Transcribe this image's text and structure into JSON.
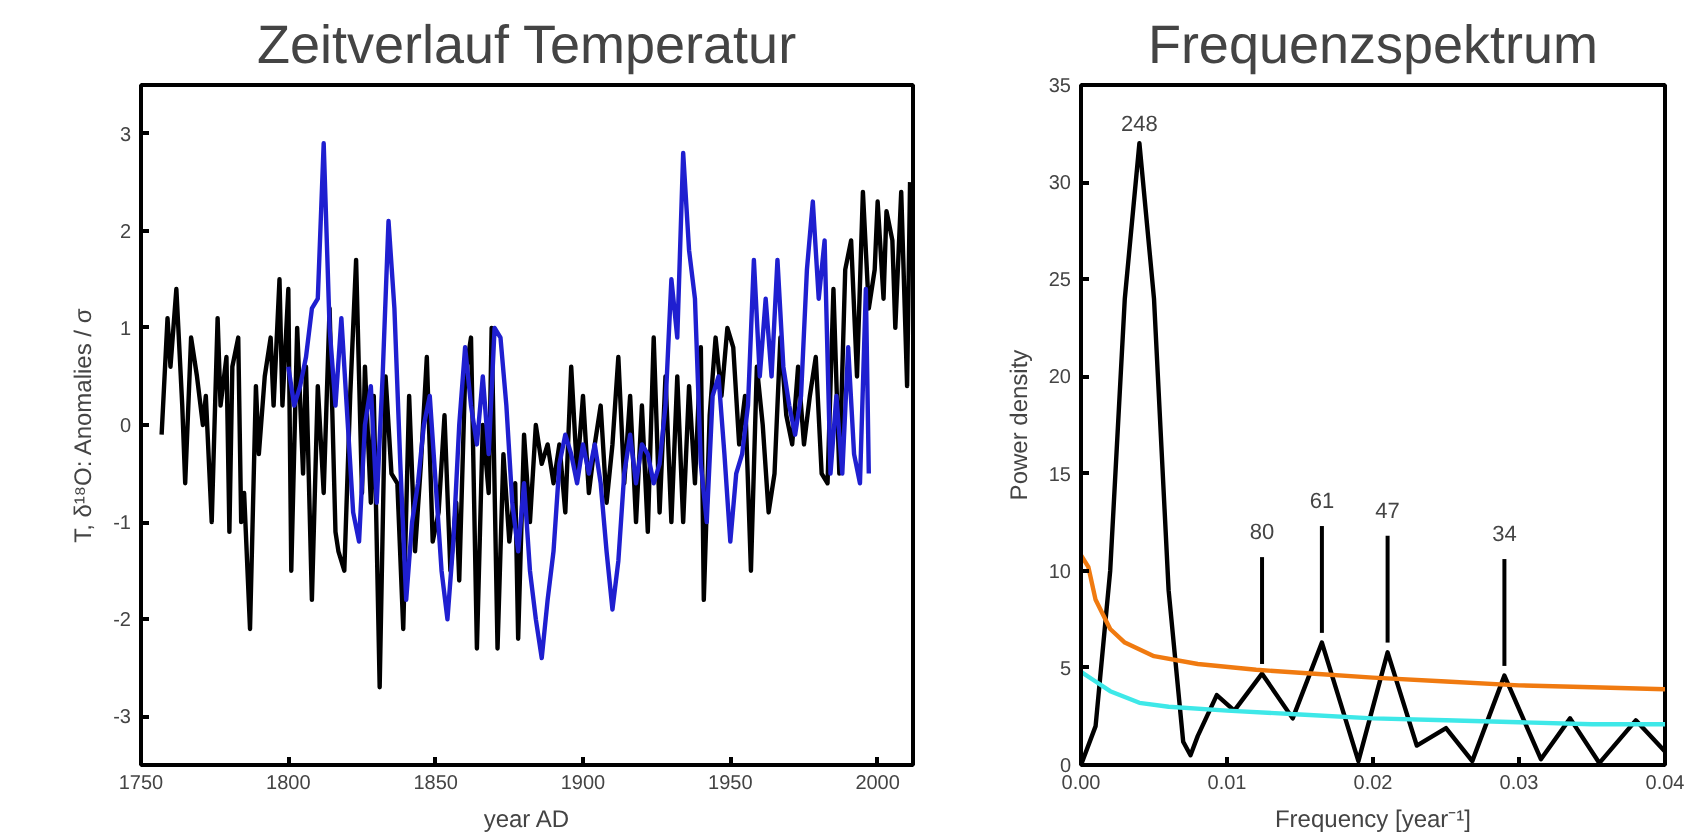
{
  "chart_data": [
    {
      "type": "line",
      "title": "Zeitverlauf Temperatur",
      "xlabel": "year AD",
      "ylabel": "T, δ¹⁸O: Anomalies / σ",
      "xlim": [
        1750,
        2012
      ],
      "ylim": [
        -3.5,
        3.5
      ],
      "xticks": [
        1750,
        1800,
        1850,
        1900,
        1950,
        2000
      ],
      "yticks": [
        -3,
        -2,
        -1,
        0,
        1,
        2,
        3
      ],
      "grid": false,
      "series": [
        {
          "color": "#000000",
          "x": [
            1757,
            1759,
            1760,
            1762,
            1764,
            1765,
            1767,
            1769,
            1771,
            1772,
            1774,
            1776,
            1777,
            1779,
            1780,
            1781,
            1783,
            1784,
            1785,
            1787,
            1789,
            1790,
            1792,
            1794,
            1795,
            1797,
            1798,
            1800,
            1801,
            1803,
            1805,
            1806,
            1808,
            1810,
            1812,
            1814,
            1816,
            1817,
            1819,
            1821,
            1823,
            1825,
            1826,
            1828,
            1829,
            1831,
            1833,
            1835,
            1837,
            1839,
            1841,
            1843,
            1845,
            1847,
            1849,
            1851,
            1853,
            1855,
            1857,
            1858,
            1860,
            1862,
            1864,
            1866,
            1868,
            1869,
            1871,
            1873,
            1875,
            1877,
            1878,
            1880,
            1882,
            1884,
            1886,
            1888,
            1890,
            1892,
            1894,
            1896,
            1898,
            1900,
            1902,
            1904,
            1906,
            1908,
            1910,
            1912,
            1914,
            1916,
            1918,
            1920,
            1922,
            1924,
            1926,
            1928,
            1930,
            1932,
            1934,
            1936,
            1938,
            1940,
            1941,
            1943,
            1945,
            1947,
            1949,
            1951,
            1953,
            1955,
            1957,
            1959,
            1961,
            1963,
            1965,
            1967,
            1969,
            1971,
            1973,
            1975,
            1977,
            1979,
            1981,
            1983,
            1985,
            1987,
            1989,
            1991,
            1993,
            1995,
            1997,
            1999,
            2000,
            2002,
            2003,
            2005,
            2006,
            2008,
            2010,
            2011
          ],
          "values": [
            -0.1,
            1.1,
            0.6,
            1.4,
            0.2,
            -0.6,
            0.9,
            0.5,
            0.0,
            0.3,
            -1.0,
            1.1,
            0.2,
            0.7,
            -1.1,
            0.6,
            0.9,
            -1.0,
            -0.7,
            -2.1,
            0.4,
            -0.3,
            0.5,
            0.9,
            0.2,
            1.5,
            0.2,
            1.4,
            -1.5,
            1.0,
            -0.5,
            0.6,
            -1.8,
            0.4,
            -0.7,
            1.2,
            -1.1,
            -1.3,
            -1.5,
            0.3,
            1.7,
            -0.7,
            0.6,
            -0.8,
            0.3,
            -2.7,
            0.5,
            -0.5,
            -0.6,
            -2.1,
            0.3,
            -1.3,
            -0.4,
            0.7,
            -1.2,
            -0.9,
            0.1,
            -1.5,
            -0.8,
            -1.6,
            0.5,
            0.9,
            -2.3,
            0.0,
            -0.7,
            1.0,
            -2.3,
            -0.3,
            -1.2,
            -0.6,
            -2.2,
            -0.1,
            -1.0,
            0.0,
            -0.4,
            -0.2,
            -0.6,
            -0.2,
            -0.9,
            0.6,
            -0.5,
            0.3,
            -0.7,
            -0.2,
            0.2,
            -0.8,
            -0.2,
            0.7,
            -0.6,
            0.3,
            -1.0,
            0.2,
            -1.1,
            0.9,
            -0.9,
            0.5,
            -1.0,
            0.5,
            -1.0,
            0.4,
            -0.6,
            0.8,
            -1.8,
            0.1,
            0.9,
            0.3,
            1.0,
            0.8,
            -0.2,
            0.3,
            -1.5,
            0.6,
            0.0,
            -0.9,
            -0.5,
            0.9,
            0.1,
            -0.2,
            0.6,
            -0.2,
            0.3,
            0.7,
            -0.5,
            -0.6,
            1.4,
            -0.5,
            1.6,
            1.9,
            0.5,
            2.4,
            1.2,
            1.6,
            2.3,
            1.3,
            2.2,
            1.9,
            1.0,
            2.4,
            0.4,
            2.5
          ]
        },
        {
          "color": "#1f1fd0",
          "x": [
            1800,
            1802,
            1804,
            1806,
            1808,
            1810,
            1812,
            1814,
            1816,
            1818,
            1820,
            1822,
            1824,
            1826,
            1828,
            1830,
            1832,
            1834,
            1836,
            1838,
            1840,
            1842,
            1844,
            1846,
            1848,
            1850,
            1852,
            1854,
            1856,
            1858,
            1860,
            1862,
            1864,
            1866,
            1868,
            1870,
            1872,
            1874,
            1876,
            1878,
            1880,
            1882,
            1884,
            1886,
            1888,
            1890,
            1892,
            1894,
            1896,
            1898,
            1900,
            1902,
            1904,
            1906,
            1908,
            1910,
            1912,
            1914,
            1916,
            1918,
            1920,
            1922,
            1924,
            1926,
            1928,
            1930,
            1932,
            1934,
            1936,
            1938,
            1940,
            1942,
            1944,
            1946,
            1948,
            1950,
            1952,
            1954,
            1956,
            1958,
            1960,
            1962,
            1964,
            1966,
            1968,
            1970,
            1972,
            1974,
            1976,
            1978,
            1980,
            1982,
            1984,
            1986,
            1988,
            1990,
            1992,
            1994,
            1996,
            1997
          ],
          "values": [
            0.6,
            0.2,
            0.4,
            0.7,
            1.2,
            1.3,
            2.9,
            1.0,
            0.2,
            1.1,
            0.1,
            -0.9,
            -1.2,
            0.0,
            0.4,
            -0.8,
            0.5,
            2.1,
            1.2,
            -0.4,
            -1.8,
            -1.0,
            -0.6,
            0.0,
            0.3,
            -0.6,
            -1.5,
            -2.0,
            -1.2,
            0.0,
            0.8,
            0.2,
            -0.2,
            0.5,
            -0.3,
            1.0,
            0.9,
            0.2,
            -0.8,
            -1.3,
            -0.6,
            -1.5,
            -2.0,
            -2.4,
            -1.8,
            -1.3,
            -0.4,
            -0.1,
            -0.3,
            -0.6,
            -0.2,
            -0.5,
            -0.2,
            -0.6,
            -1.3,
            -1.9,
            -1.4,
            -0.5,
            -0.1,
            -0.6,
            -0.2,
            -0.3,
            -0.6,
            -0.4,
            0.2,
            1.5,
            0.9,
            2.8,
            1.8,
            1.3,
            -0.4,
            -1.0,
            0.3,
            0.5,
            -0.3,
            -1.2,
            -0.5,
            -0.3,
            0.2,
            1.7,
            0.5,
            1.3,
            0.5,
            1.7,
            0.6,
            0.2,
            -0.1,
            0.3,
            1.6,
            2.3,
            1.3,
            1.9,
            -0.5,
            0.3,
            -0.5,
            0.8,
            -0.3,
            -0.6,
            1.4,
            -0.5
          ]
        }
      ]
    },
    {
      "type": "line",
      "title": "Frequenzspektrum",
      "xlabel": "Frequency [year⁻¹]",
      "ylabel": "Power density",
      "xlim": [
        0,
        0.04
      ],
      "ylim": [
        0,
        35
      ],
      "xticks": [
        {
          "value": 0,
          "label": "0.00"
        },
        {
          "value": 0.01,
          "label": "0.01"
        },
        {
          "value": 0.02,
          "label": "0.02"
        },
        {
          "value": 0.03,
          "label": "0.03"
        },
        {
          "value": 0.04,
          "label": "0.04"
        }
      ],
      "yticks": [
        0,
        5,
        10,
        15,
        20,
        25,
        30,
        35
      ],
      "grid": false,
      "annotations": [
        {
          "text": "248",
          "x": 0.004,
          "y": 32
        },
        {
          "text": "80",
          "x": 0.0124,
          "y": 4.7
        },
        {
          "text": "61",
          "x": 0.0165,
          "y": 6.3
        },
        {
          "text": "47",
          "x": 0.021,
          "y": 5.8
        },
        {
          "text": "34",
          "x": 0.029,
          "y": 4.6
        }
      ],
      "series": [
        {
          "color": "#000000",
          "x": [
            0,
            0.001,
            0.002,
            0.003,
            0.004,
            0.005,
            0.006,
            0.007,
            0.0075,
            0.008,
            0.0093,
            0.0105,
            0.0124,
            0.0145,
            0.0165,
            0.019,
            0.021,
            0.023,
            0.025,
            0.0268,
            0.029,
            0.0315,
            0.0335,
            0.0355,
            0.038,
            0.04
          ],
          "values": [
            0,
            2,
            10,
            24,
            32,
            24,
            9,
            1.2,
            0.5,
            1.5,
            3.6,
            2.8,
            4.7,
            2.4,
            6.3,
            0.2,
            5.8,
            1.0,
            1.9,
            0.2,
            4.6,
            0.3,
            2.4,
            0.1,
            2.3,
            0.7
          ]
        },
        {
          "color": "#f07a10",
          "x": [
            0,
            0.0005,
            0.001,
            0.002,
            0.003,
            0.005,
            0.008,
            0.012,
            0.016,
            0.02,
            0.025,
            0.03,
            0.035,
            0.04
          ],
          "values": [
            10.8,
            10.2,
            8.5,
            7,
            6.3,
            5.6,
            5.2,
            4.9,
            4.7,
            4.5,
            4.3,
            4.1,
            4.0,
            3.9
          ]
        },
        {
          "color": "#3ee8e8",
          "x": [
            0,
            0.001,
            0.002,
            0.004,
            0.006,
            0.01,
            0.015,
            0.02,
            0.025,
            0.03,
            0.035,
            0.04
          ],
          "values": [
            4.8,
            4.3,
            3.8,
            3.2,
            3.0,
            2.8,
            2.6,
            2.4,
            2.3,
            2.2,
            2.1,
            2.1
          ]
        }
      ]
    }
  ]
}
